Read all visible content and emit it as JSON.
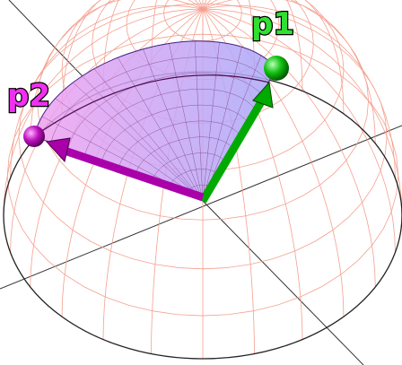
{
  "nodes": [
    {
      "label": "p1"
    },
    {
      "label": "p2"
    }
  ]
}
